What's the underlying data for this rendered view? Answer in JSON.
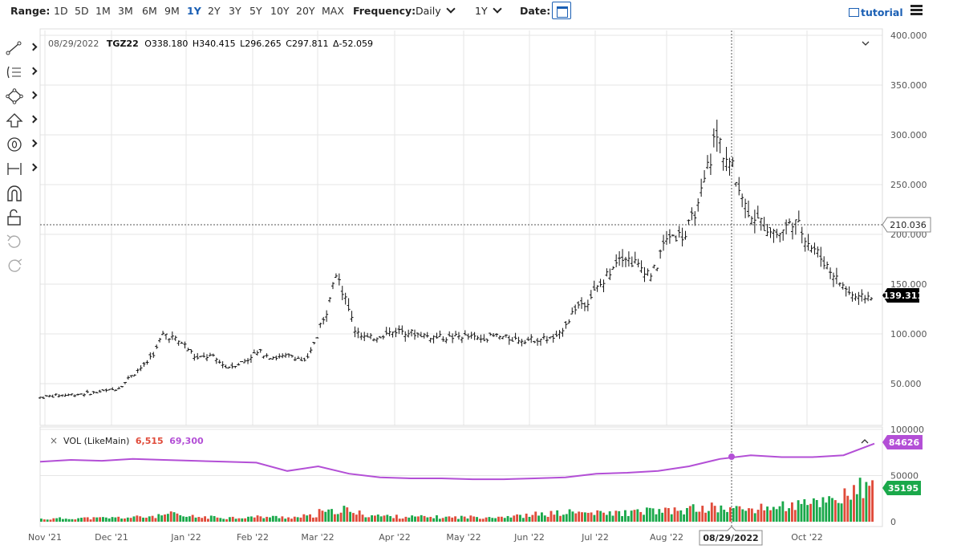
{
  "toolbar": {
    "range_label": "Range:",
    "ranges": [
      "1D",
      "5D",
      "1M",
      "3M",
      "6M",
      "9M",
      "1Y",
      "2Y",
      "3Y",
      "5Y",
      "10Y",
      "20Y",
      "MAX"
    ],
    "active_range": "1Y",
    "frequency_label": "Frequency:",
    "frequency_value": "Daily",
    "period_value": "1Y",
    "date_label": "Date:",
    "tutorial_label": "tutorial"
  },
  "sidebar": {
    "tools": [
      "line-tool-icon",
      "text-list-tool-icon",
      "shape-tool-icon",
      "arrow-tool-icon",
      "circle-tool-icon",
      "measure-tool-icon",
      "magnet-icon",
      "lock-icon",
      "undo-icon",
      "redo-icon"
    ]
  },
  "colors": {
    "volume_up": "#1aa84a",
    "volume_down": "#e04b3a",
    "avg_line": "#b34fd6",
    "grid": "#e6e6e6",
    "crosshair_label_bg": "#000000"
  },
  "chart_data": [
    {
      "type": "ohlc",
      "symbol": "TGZ22",
      "info_date": "08/29/2022",
      "info_open": "O338.180",
      "info_high": "H340.415",
      "info_low": "L296.265",
      "info_close": "C297.811",
      "info_change": "Δ-52.059",
      "y_ticks": [
        "400.000",
        "350.000",
        "300.000",
        "250.000",
        "200.000",
        "150.000",
        "100.000",
        "50.000"
      ],
      "ylim": [
        0,
        400
      ],
      "crosshair_price": "210.036",
      "last_price": "139.311",
      "x_ticks": [
        "Nov '21",
        "Dec '21",
        "Jan '22",
        "Feb '22",
        "Mar '22",
        "Apr '22",
        "May '22",
        "Jun '22",
        "Jul '22",
        "Aug '22",
        "Sep '22",
        "Oct '22"
      ],
      "crosshair_date": "08/29/2022",
      "weekly_close": [
        [
          "2021-10-29",
          36
        ],
        [
          "2021-11-05",
          38
        ],
        [
          "2021-11-12",
          39
        ],
        [
          "2021-11-19",
          40
        ],
        [
          "2021-11-26",
          42
        ],
        [
          "2021-12-03",
          45
        ],
        [
          "2021-12-10",
          60
        ],
        [
          "2021-12-17",
          72
        ],
        [
          "2021-12-24",
          100
        ],
        [
          "2021-12-31",
          92
        ],
        [
          "2022-01-07",
          75
        ],
        [
          "2022-01-14",
          78
        ],
        [
          "2022-01-21",
          66
        ],
        [
          "2022-01-28",
          72
        ],
        [
          "2022-02-04",
          82
        ],
        [
          "2022-02-11",
          76
        ],
        [
          "2022-02-18",
          78
        ],
        [
          "2022-02-25",
          72
        ],
        [
          "2022-03-04",
          110
        ],
        [
          "2022-03-11",
          165
        ],
        [
          "2022-03-18",
          105
        ],
        [
          "2022-03-25",
          95
        ],
        [
          "2022-04-01",
          100
        ],
        [
          "2022-04-08",
          104
        ],
        [
          "2022-04-15",
          100
        ],
        [
          "2022-04-22",
          97
        ],
        [
          "2022-04-29",
          96
        ],
        [
          "2022-05-06",
          98
        ],
        [
          "2022-05-13",
          95
        ],
        [
          "2022-05-20",
          98
        ],
        [
          "2022-05-27",
          95
        ],
        [
          "2022-06-03",
          94
        ],
        [
          "2022-06-10",
          95
        ],
        [
          "2022-06-17",
          96
        ],
        [
          "2022-06-24",
          125
        ],
        [
          "2022-07-01",
          135
        ],
        [
          "2022-07-08",
          155
        ],
        [
          "2022-07-15",
          180
        ],
        [
          "2022-07-22",
          170
        ],
        [
          "2022-07-29",
          160
        ],
        [
          "2022-08-05",
          200
        ],
        [
          "2022-08-12",
          198
        ],
        [
          "2022-08-19",
          230
        ],
        [
          "2022-08-26",
          300
        ],
        [
          "2022-09-02",
          270
        ],
        [
          "2022-09-09",
          225
        ],
        [
          "2022-09-16",
          210
        ],
        [
          "2022-09-23",
          200
        ],
        [
          "2022-09-30",
          215
        ],
        [
          "2022-10-07",
          190
        ],
        [
          "2022-10-14",
          170
        ],
        [
          "2022-10-21",
          150
        ],
        [
          "2022-10-28",
          135
        ],
        [
          "2022-11-04",
          139
        ]
      ]
    },
    {
      "type": "bar",
      "title": "VOL (LikeMain)",
      "current_volume": "6,515",
      "current_avg": "69,300",
      "y_ticks": [
        "100000",
        "50000",
        "0"
      ],
      "ylim": [
        0,
        100000
      ],
      "last_avg_label": "84626",
      "last_volume_label": "35195",
      "avg_line_weekly": [
        65000,
        67000,
        66000,
        68000,
        67000,
        66000,
        65000,
        64000,
        55000,
        60000,
        52000,
        48000,
        47000,
        47000,
        46000,
        46000,
        47000,
        48000,
        52000,
        53000,
        55000,
        60000,
        68000,
        72000,
        70000,
        70000,
        72000,
        84626
      ],
      "weekly_volume": [
        3000,
        3500,
        4000,
        3800,
        4200,
        4500,
        5000,
        6000,
        8000,
        5500,
        5000,
        4800,
        4500,
        5000,
        5200,
        5000,
        4800,
        6000,
        10000,
        13000,
        9000,
        7000,
        6000,
        5500,
        5200,
        5000,
        4800,
        5000,
        5200,
        5500,
        6000,
        6500,
        8000,
        9000,
        10000,
        9500,
        9000,
        9500,
        10000,
        12000,
        11000,
        12000,
        14000,
        15000,
        14000,
        13500,
        14000,
        16000,
        17000,
        18000,
        22000,
        26000,
        30000,
        35195
      ]
    }
  ]
}
